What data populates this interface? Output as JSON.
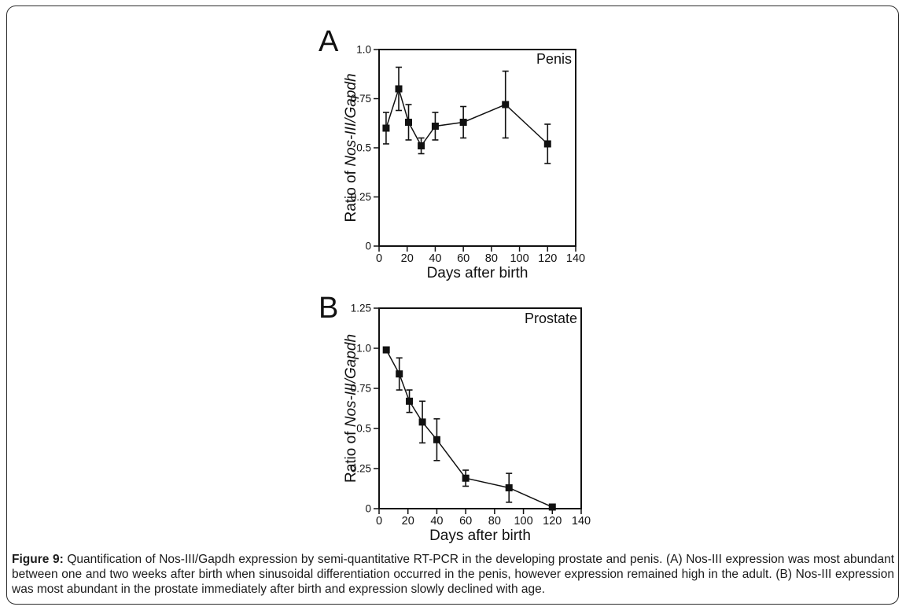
{
  "page": {
    "background": "#ffffff",
    "frame_color": "#2b2b2b",
    "ink_color": "#111111"
  },
  "caption": {
    "bold_label": "Figure 9:",
    "line1": " Quantification of Nos-III/Gapdh expression by semi-quantitative RT-PCR in the developing prostate and penis. (A) Nos-III expression was most abundant",
    "line2": "between one and two weeks after birth when sinusoidal differentiation occurred in the penis, however expression remained high in the adult.  (B) Nos-III expression",
    "line3": "was most abundant in the prostate immediately after birth and expression slowly declined with age."
  },
  "chart_data": [
    {
      "type": "line",
      "panel_label": "A",
      "title": "Penis",
      "xlabel": "Days after birth",
      "ylabel_prefix": "Ratio of ",
      "ylabel_italic": "Nos-III/Gapdh",
      "x": [
        5,
        14,
        21,
        30,
        40,
        60,
        90,
        120
      ],
      "y": [
        0.6,
        0.8,
        0.63,
        0.51,
        0.61,
        0.63,
        0.72,
        0.52
      ],
      "yerr": [
        0.08,
        0.11,
        0.09,
        0.04,
        0.07,
        0.08,
        0.17,
        0.1
      ],
      "xlim": [
        0,
        140
      ],
      "ylim": [
        0,
        1.0
      ],
      "xticks": [
        0,
        20,
        40,
        60,
        80,
        100,
        120,
        140
      ],
      "yticks": [
        0,
        0.25,
        0.5,
        0.75,
        1.0
      ],
      "ytick_labels": [
        "0",
        "0.25",
        "0.5",
        "0.75",
        "1.0"
      ],
      "marker": "square",
      "color": "#111111",
      "grid": false,
      "legend": "none"
    },
    {
      "type": "line",
      "panel_label": "B",
      "title": "Prostate",
      "xlabel": "Days after birth",
      "ylabel_prefix": "Ratio of ",
      "ylabel_italic": "Nos-III/Gapdh",
      "x": [
        5,
        14,
        21,
        30,
        40,
        60,
        90,
        120
      ],
      "y": [
        0.99,
        0.84,
        0.67,
        0.54,
        0.43,
        0.19,
        0.13,
        0.01
      ],
      "yerr": [
        0,
        0.1,
        0.07,
        0.13,
        0.13,
        0.05,
        0.09,
        0
      ],
      "xlim": [
        0,
        140
      ],
      "ylim": [
        0,
        1.25
      ],
      "xticks": [
        0,
        20,
        40,
        60,
        80,
        100,
        120,
        140
      ],
      "yticks": [
        0,
        0.25,
        0.5,
        0.75,
        1.0,
        1.25
      ],
      "ytick_labels": [
        "0",
        "0.25",
        "0.5",
        "0.75",
        "1.0",
        "1.25"
      ],
      "marker": "square",
      "color": "#111111",
      "grid": false,
      "legend": "none"
    }
  ]
}
